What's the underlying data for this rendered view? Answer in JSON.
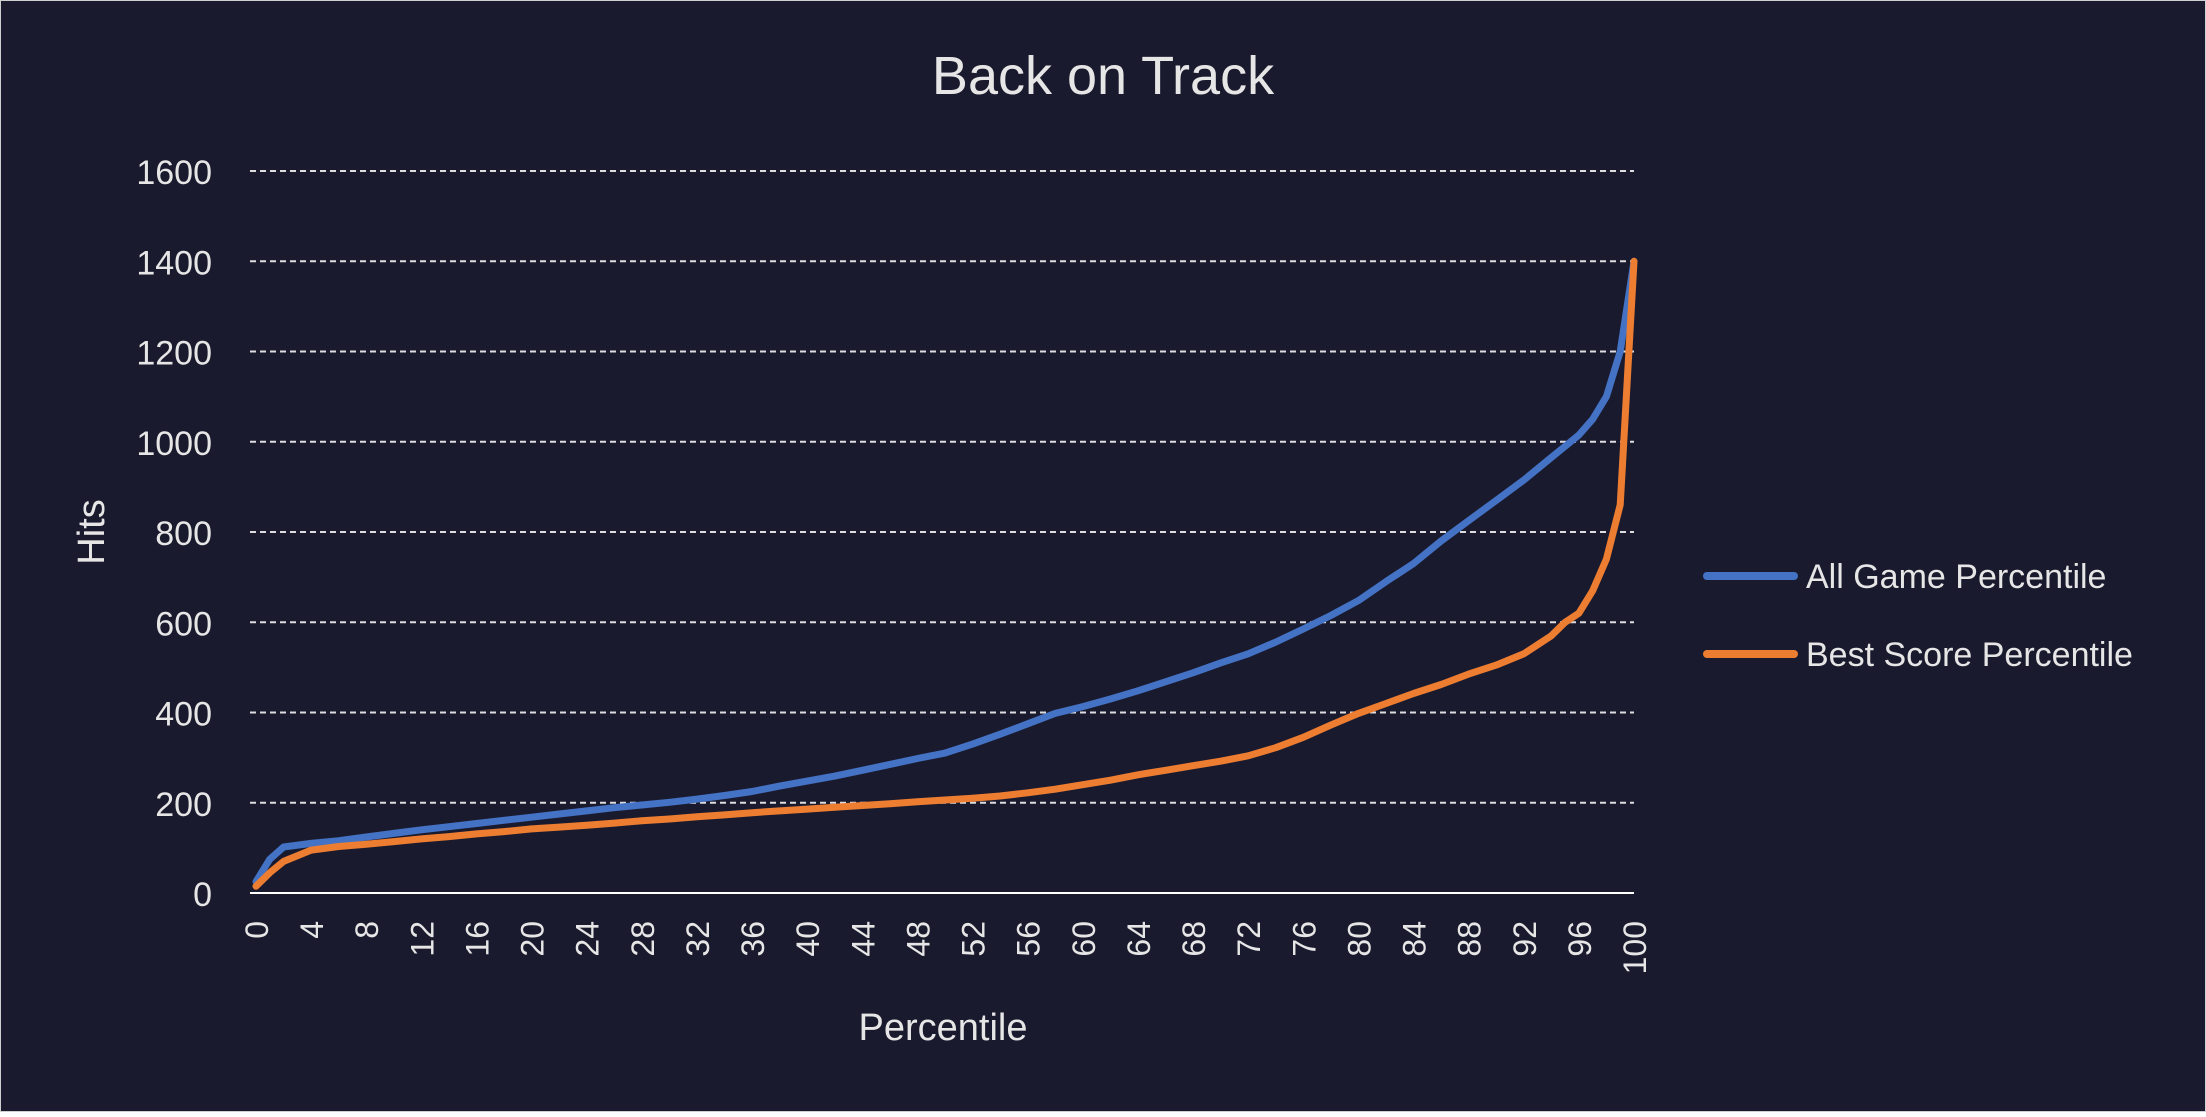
{
  "colors": {
    "background": "#1a1a2e",
    "text": "#e6e6e6",
    "grid": "#ffffff",
    "series_all_game": "#4472c4",
    "series_best_score": "#ed7d31"
  },
  "chart_data": {
    "type": "line",
    "title": "Back on Track",
    "xlabel": "Percentile",
    "ylabel": "Hits",
    "xlim": [
      0,
      100
    ],
    "ylim": [
      0,
      1600
    ],
    "grid": true,
    "legend_position": "right",
    "x_ticks": [
      0,
      4,
      8,
      12,
      16,
      20,
      24,
      28,
      32,
      36,
      40,
      44,
      48,
      52,
      56,
      60,
      64,
      68,
      72,
      76,
      80,
      84,
      88,
      92,
      96,
      100
    ],
    "y_ticks": [
      0,
      200,
      400,
      600,
      800,
      1000,
      1200,
      1400,
      1600
    ],
    "x": [
      0,
      1,
      2,
      4,
      6,
      8,
      10,
      12,
      14,
      16,
      18,
      20,
      22,
      24,
      26,
      28,
      30,
      32,
      34,
      36,
      38,
      40,
      42,
      44,
      46,
      48,
      50,
      52,
      54,
      56,
      58,
      60,
      62,
      64,
      66,
      68,
      70,
      72,
      74,
      76,
      78,
      80,
      82,
      84,
      86,
      88,
      90,
      92,
      94,
      95,
      96,
      97,
      98,
      99,
      100
    ],
    "series": [
      {
        "name": "All Game Percentile",
        "color": "#4472c4",
        "values": [
          25,
          75,
          102,
          110,
          116,
          124,
          132,
          140,
          147,
          154,
          161,
          168,
          175,
          182,
          189,
          195,
          201,
          208,
          216,
          225,
          237,
          248,
          259,
          272,
          285,
          298,
          310,
          330,
          352,
          375,
          398,
          413,
          430,
          448,
          468,
          488,
          510,
          530,
          556,
          585,
          615,
          648,
          690,
          730,
          780,
          825,
          870,
          915,
          965,
          990,
          1015,
          1050,
          1100,
          1200,
          1400
        ]
      },
      {
        "name": "Best Score Percentile",
        "color": "#ed7d31",
        "values": [
          15,
          45,
          70,
          95,
          103,
          108,
          114,
          120,
          125,
          131,
          136,
          142,
          146,
          150,
          155,
          160,
          164,
          169,
          173,
          178,
          182,
          186,
          190,
          194,
          198,
          202,
          206,
          210,
          215,
          222,
          230,
          240,
          250,
          262,
          272,
          282,
          292,
          304,
          322,
          345,
          372,
          398,
          420,
          442,
          462,
          485,
          505,
          530,
          570,
          600,
          620,
          670,
          740,
          860,
          1400
        ]
      }
    ]
  }
}
